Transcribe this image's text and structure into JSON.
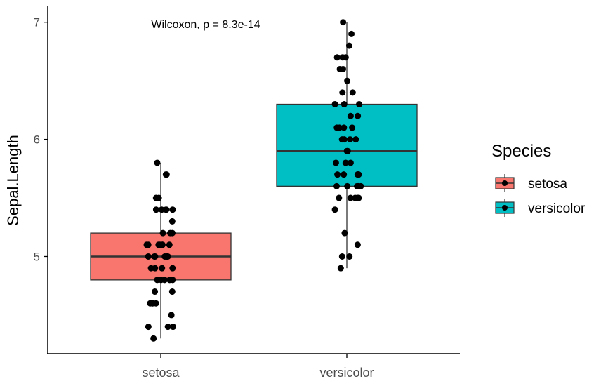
{
  "chart_data": {
    "type": "boxplot",
    "title": "",
    "annotation": "Wilcoxon, p = 8.3e-14",
    "xlabel": "",
    "ylabel": "Sepal.Length",
    "ylim": [
      4.17,
      7.13
    ],
    "yticks": [
      5,
      6,
      7
    ],
    "ytick_labels": [
      "5",
      "6",
      "7"
    ],
    "categories": [
      "setosa",
      "versicolor"
    ],
    "grid": false,
    "legend": {
      "title": "Species",
      "position": "right",
      "entries": [
        "setosa",
        "versicolor"
      ]
    },
    "colors": {
      "setosa": "#F8766D",
      "versicolor": "#00BFC4"
    },
    "boxes": [
      {
        "category": "setosa",
        "min": 4.3,
        "q1": 4.8,
        "median": 5.0,
        "q3": 5.2,
        "max": 5.8
      },
      {
        "category": "versicolor",
        "min": 4.9,
        "q1": 5.6,
        "median": 5.9,
        "q3": 6.3,
        "max": 7.0
      }
    ],
    "points": {
      "setosa": [
        5.1,
        4.9,
        4.7,
        4.6,
        5.0,
        5.4,
        4.6,
        5.0,
        4.4,
        4.9,
        5.4,
        4.8,
        4.8,
        4.3,
        5.8,
        5.7,
        5.4,
        5.1,
        5.7,
        5.1,
        5.4,
        5.1,
        4.6,
        5.1,
        4.8,
        5.0,
        5.0,
        5.2,
        5.2,
        4.7,
        4.8,
        5.4,
        5.2,
        5.5,
        4.9,
        5.0,
        5.5,
        4.9,
        4.4,
        5.1,
        5.0,
        4.5,
        4.4,
        5.0,
        5.1,
        4.8,
        5.1,
        4.6,
        5.3,
        5.0
      ],
      "versicolor": [
        7.0,
        6.4,
        6.9,
        5.5,
        6.5,
        5.7,
        6.3,
        4.9,
        6.6,
        5.2,
        5.0,
        5.9,
        6.0,
        6.1,
        5.6,
        6.7,
        5.6,
        5.8,
        6.2,
        5.6,
        5.9,
        6.1,
        6.3,
        6.1,
        6.4,
        6.6,
        6.8,
        6.7,
        6.0,
        5.7,
        5.5,
        5.5,
        5.8,
        6.0,
        5.4,
        6.0,
        6.7,
        6.3,
        5.6,
        5.5,
        5.5,
        6.1,
        5.8,
        5.0,
        5.6,
        5.7,
        5.7,
        6.2,
        5.1,
        5.7
      ]
    }
  }
}
